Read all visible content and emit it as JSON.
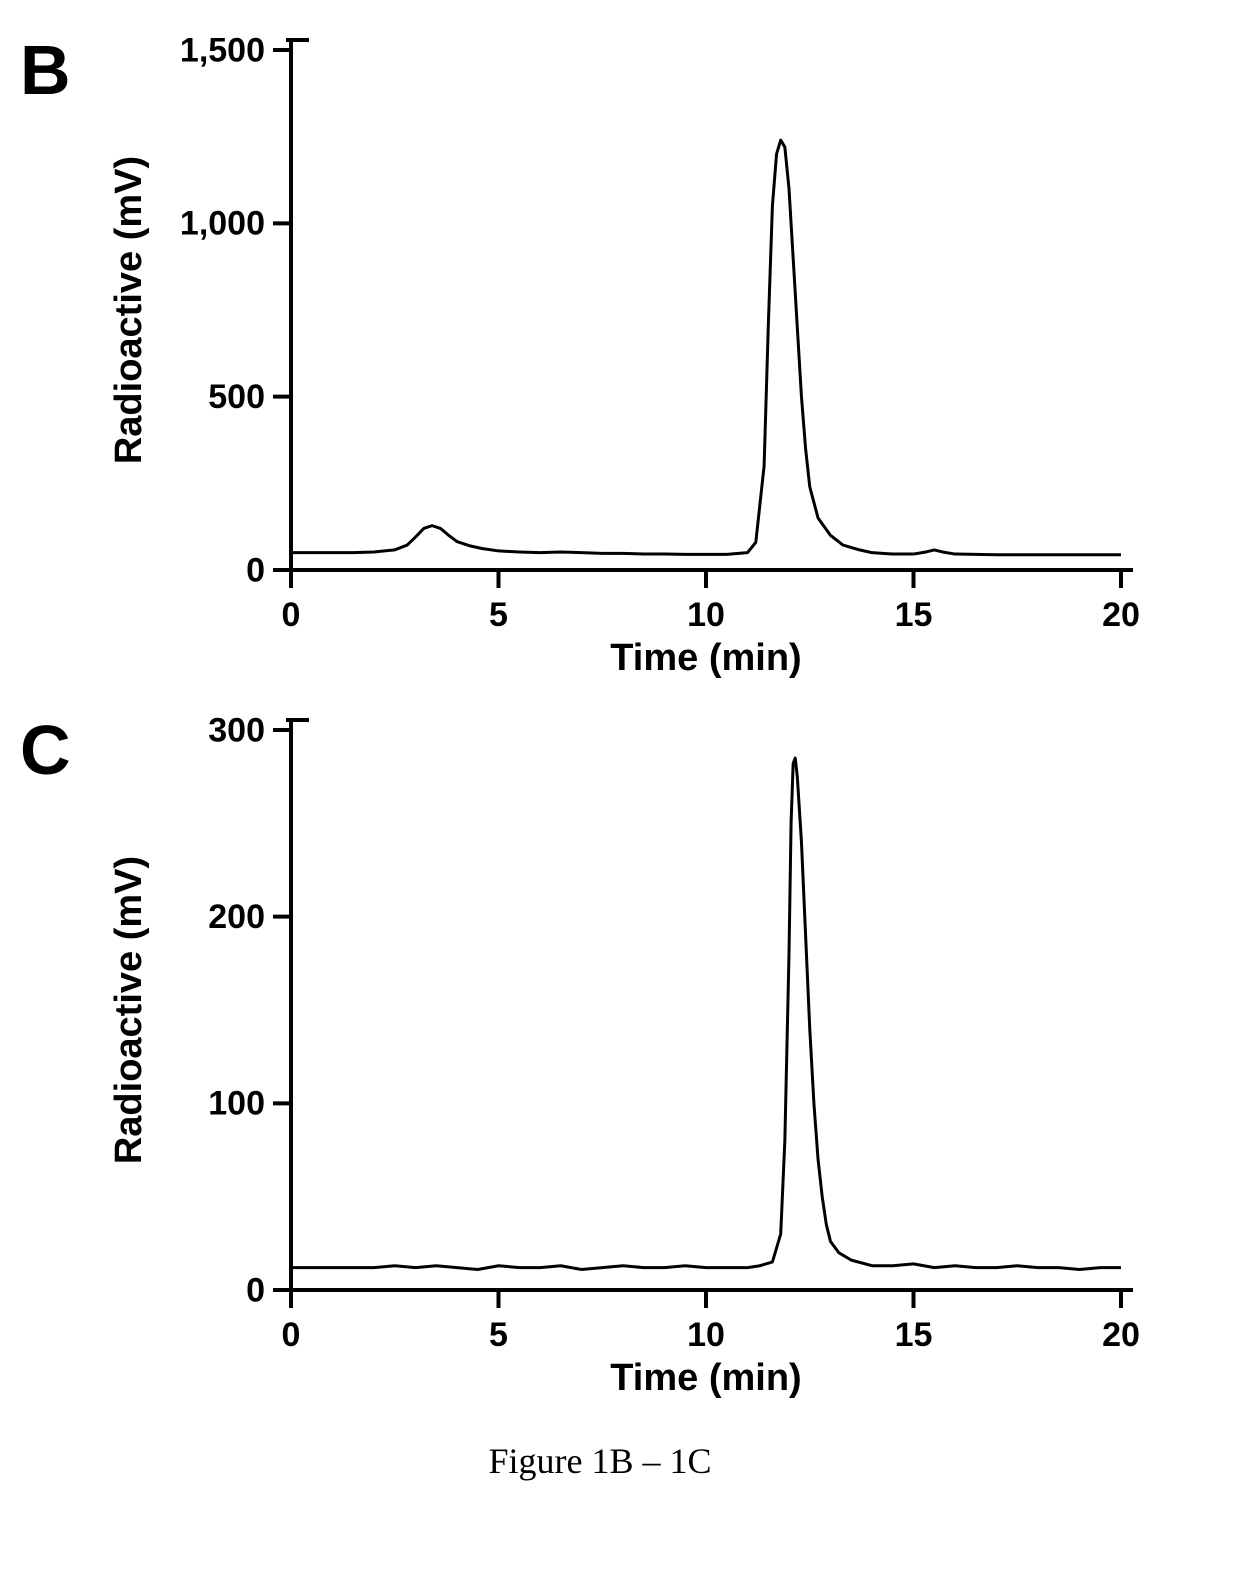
{
  "caption": "Figure 1B – 1C",
  "panel_b": {
    "label": "B",
    "type": "line",
    "xlabel": "Time (min)",
    "ylabel": "Radioactive (mV)",
    "label_fontsize": 38,
    "tick_fontsize": 34,
    "xlim": [
      0,
      20
    ],
    "ylim": [
      0,
      1500
    ],
    "xticks": [
      0,
      5,
      10,
      15,
      20
    ],
    "yticks": [
      0,
      500,
      1000,
      1500
    ],
    "ytick_labels": [
      "0",
      "500",
      "1,000",
      "1,500"
    ],
    "line_color": "#000000",
    "line_width": 3,
    "background_color": "#ffffff",
    "axis_color": "#000000",
    "axis_width": 4,
    "data": [
      {
        "x": 0.0,
        "y": 50
      },
      {
        "x": 0.5,
        "y": 50
      },
      {
        "x": 1.0,
        "y": 50
      },
      {
        "x": 1.5,
        "y": 50
      },
      {
        "x": 2.0,
        "y": 52
      },
      {
        "x": 2.5,
        "y": 58
      },
      {
        "x": 2.8,
        "y": 72
      },
      {
        "x": 3.0,
        "y": 95
      },
      {
        "x": 3.2,
        "y": 120
      },
      {
        "x": 3.4,
        "y": 128
      },
      {
        "x": 3.6,
        "y": 120
      },
      {
        "x": 3.8,
        "y": 100
      },
      {
        "x": 4.0,
        "y": 82
      },
      {
        "x": 4.3,
        "y": 70
      },
      {
        "x": 4.6,
        "y": 62
      },
      {
        "x": 5.0,
        "y": 55
      },
      {
        "x": 5.5,
        "y": 52
      },
      {
        "x": 6.0,
        "y": 50
      },
      {
        "x": 6.5,
        "y": 52
      },
      {
        "x": 7.0,
        "y": 50
      },
      {
        "x": 7.5,
        "y": 48
      },
      {
        "x": 8.0,
        "y": 48
      },
      {
        "x": 8.5,
        "y": 46
      },
      {
        "x": 9.0,
        "y": 46
      },
      {
        "x": 9.5,
        "y": 45
      },
      {
        "x": 10.0,
        "y": 45
      },
      {
        "x": 10.5,
        "y": 45
      },
      {
        "x": 11.0,
        "y": 50
      },
      {
        "x": 11.2,
        "y": 80
      },
      {
        "x": 11.4,
        "y": 300
      },
      {
        "x": 11.5,
        "y": 700
      },
      {
        "x": 11.6,
        "y": 1050
      },
      {
        "x": 11.7,
        "y": 1200
      },
      {
        "x": 11.8,
        "y": 1240
      },
      {
        "x": 11.9,
        "y": 1220
      },
      {
        "x": 12.0,
        "y": 1100
      },
      {
        "x": 12.1,
        "y": 900
      },
      {
        "x": 12.2,
        "y": 700
      },
      {
        "x": 12.3,
        "y": 500
      },
      {
        "x": 12.4,
        "y": 350
      },
      {
        "x": 12.5,
        "y": 240
      },
      {
        "x": 12.7,
        "y": 150
      },
      {
        "x": 13.0,
        "y": 100
      },
      {
        "x": 13.3,
        "y": 72
      },
      {
        "x": 13.7,
        "y": 58
      },
      {
        "x": 14.0,
        "y": 50
      },
      {
        "x": 14.5,
        "y": 46
      },
      {
        "x": 15.0,
        "y": 46
      },
      {
        "x": 15.3,
        "y": 52
      },
      {
        "x": 15.5,
        "y": 58
      },
      {
        "x": 15.7,
        "y": 52
      },
      {
        "x": 16.0,
        "y": 46
      },
      {
        "x": 16.5,
        "y": 45
      },
      {
        "x": 17.0,
        "y": 44
      },
      {
        "x": 17.5,
        "y": 44
      },
      {
        "x": 18.0,
        "y": 44
      },
      {
        "x": 18.5,
        "y": 44
      },
      {
        "x": 19.0,
        "y": 44
      },
      {
        "x": 19.5,
        "y": 44
      },
      {
        "x": 20.0,
        "y": 44
      }
    ]
  },
  "panel_c": {
    "label": "C",
    "type": "line",
    "xlabel": "Time (min)",
    "ylabel": "Radioactive (mV)",
    "label_fontsize": 38,
    "tick_fontsize": 34,
    "xlim": [
      0,
      20
    ],
    "ylim": [
      0,
      300
    ],
    "xticks": [
      0,
      5,
      10,
      15,
      20
    ],
    "yticks": [
      0,
      100,
      200,
      300
    ],
    "ytick_labels": [
      "0",
      "100",
      "200",
      "300"
    ],
    "line_color": "#000000",
    "line_width": 3,
    "background_color": "#ffffff",
    "axis_color": "#000000",
    "axis_width": 4,
    "data": [
      {
        "x": 0.0,
        "y": 12
      },
      {
        "x": 0.5,
        "y": 12
      },
      {
        "x": 1.0,
        "y": 12
      },
      {
        "x": 1.5,
        "y": 12
      },
      {
        "x": 2.0,
        "y": 12
      },
      {
        "x": 2.5,
        "y": 13
      },
      {
        "x": 3.0,
        "y": 12
      },
      {
        "x": 3.5,
        "y": 13
      },
      {
        "x": 4.0,
        "y": 12
      },
      {
        "x": 4.5,
        "y": 11
      },
      {
        "x": 5.0,
        "y": 13
      },
      {
        "x": 5.5,
        "y": 12
      },
      {
        "x": 6.0,
        "y": 12
      },
      {
        "x": 6.5,
        "y": 13
      },
      {
        "x": 7.0,
        "y": 11
      },
      {
        "x": 7.5,
        "y": 12
      },
      {
        "x": 8.0,
        "y": 13
      },
      {
        "x": 8.5,
        "y": 12
      },
      {
        "x": 9.0,
        "y": 12
      },
      {
        "x": 9.5,
        "y": 13
      },
      {
        "x": 10.0,
        "y": 12
      },
      {
        "x": 10.5,
        "y": 12
      },
      {
        "x": 11.0,
        "y": 12
      },
      {
        "x": 11.3,
        "y": 13
      },
      {
        "x": 11.6,
        "y": 15
      },
      {
        "x": 11.8,
        "y": 30
      },
      {
        "x": 11.9,
        "y": 80
      },
      {
        "x": 12.0,
        "y": 180
      },
      {
        "x": 12.05,
        "y": 250
      },
      {
        "x": 12.1,
        "y": 282
      },
      {
        "x": 12.15,
        "y": 285
      },
      {
        "x": 12.2,
        "y": 275
      },
      {
        "x": 12.3,
        "y": 240
      },
      {
        "x": 12.4,
        "y": 190
      },
      {
        "x": 12.5,
        "y": 140
      },
      {
        "x": 12.6,
        "y": 100
      },
      {
        "x": 12.7,
        "y": 70
      },
      {
        "x": 12.8,
        "y": 50
      },
      {
        "x": 12.9,
        "y": 35
      },
      {
        "x": 13.0,
        "y": 26
      },
      {
        "x": 13.2,
        "y": 20
      },
      {
        "x": 13.5,
        "y": 16
      },
      {
        "x": 14.0,
        "y": 13
      },
      {
        "x": 14.5,
        "y": 13
      },
      {
        "x": 15.0,
        "y": 14
      },
      {
        "x": 15.5,
        "y": 12
      },
      {
        "x": 16.0,
        "y": 13
      },
      {
        "x": 16.5,
        "y": 12
      },
      {
        "x": 17.0,
        "y": 12
      },
      {
        "x": 17.5,
        "y": 13
      },
      {
        "x": 18.0,
        "y": 12
      },
      {
        "x": 18.5,
        "y": 12
      },
      {
        "x": 19.0,
        "y": 11
      },
      {
        "x": 19.5,
        "y": 12
      },
      {
        "x": 20.0,
        "y": 12
      }
    ]
  }
}
